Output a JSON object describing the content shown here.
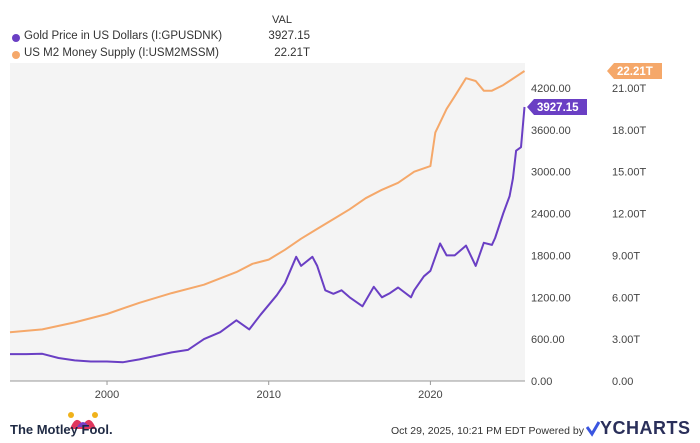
{
  "legend": {
    "header": "VAL",
    "items": [
      {
        "name": "Gold Price in US Dollars (I:GPUSDNK)",
        "value": "3927.15",
        "color": "#6a3fc4"
      },
      {
        "name": "US M2 Money Supply (I:USM2MSSM)",
        "value": "22.21T",
        "color": "#f5a86a"
      }
    ]
  },
  "footer": {
    "brand": "The Motley Fool.",
    "timestamp": "Oct 29, 2025, 10:21 PM EDT  Powered by",
    "provider": "YCHARTS",
    "provider_icon": "ycharts-check-icon",
    "brand_icon": "jester-cap-icon"
  },
  "chart_data": {
    "type": "line",
    "x_ticks": [
      "2000",
      "2010",
      "2020"
    ],
    "x_range": [
      1994.0,
      2025.85
    ],
    "left_axis": {
      "ticks": [
        "0.00",
        "600.00",
        "1200.00",
        "1800.00",
        "2400.00",
        "3000.00",
        "3600.00",
        "4200.00"
      ],
      "range": [
        0,
        4500
      ]
    },
    "right_axis": {
      "ticks": [
        "0.00",
        "3.00T",
        "6.00T",
        "9.00T",
        "12.00T",
        "15.00T",
        "18.00T",
        "21.00T"
      ],
      "range": [
        0,
        22.5
      ]
    },
    "end_labels": {
      "gold": "3927.15",
      "m2": "22.21T"
    },
    "grid": false,
    "series": [
      {
        "name": "Gold Price in US Dollars (I:GPUSDNK)",
        "axis": "left",
        "color": "#6a3fc4",
        "points": [
          [
            1994.0,
            385
          ],
          [
            1995.0,
            385
          ],
          [
            1996.0,
            390
          ],
          [
            1997.0,
            330
          ],
          [
            1998.0,
            295
          ],
          [
            1999.0,
            280
          ],
          [
            2000.0,
            280
          ],
          [
            2001.0,
            270
          ],
          [
            2002.0,
            310
          ],
          [
            2003.0,
            360
          ],
          [
            2004.0,
            410
          ],
          [
            2005.0,
            445
          ],
          [
            2006.0,
            600
          ],
          [
            2007.0,
            700
          ],
          [
            2008.0,
            870
          ],
          [
            2008.8,
            740
          ],
          [
            2009.5,
            950
          ],
          [
            2010.5,
            1230
          ],
          [
            2011.0,
            1400
          ],
          [
            2011.7,
            1780
          ],
          [
            2012.0,
            1650
          ],
          [
            2012.7,
            1780
          ],
          [
            2013.0,
            1650
          ],
          [
            2013.5,
            1300
          ],
          [
            2014.0,
            1250
          ],
          [
            2014.5,
            1300
          ],
          [
            2015.0,
            1200
          ],
          [
            2015.8,
            1070
          ],
          [
            2016.5,
            1350
          ],
          [
            2017.0,
            1200
          ],
          [
            2017.5,
            1260
          ],
          [
            2018.0,
            1340
          ],
          [
            2018.8,
            1200
          ],
          [
            2019.0,
            1300
          ],
          [
            2019.6,
            1500
          ],
          [
            2020.0,
            1580
          ],
          [
            2020.6,
            1970
          ],
          [
            2021.0,
            1800
          ],
          [
            2021.5,
            1800
          ],
          [
            2022.2,
            1940
          ],
          [
            2022.8,
            1650
          ],
          [
            2023.3,
            1980
          ],
          [
            2023.8,
            1950
          ],
          [
            2024.0,
            2050
          ],
          [
            2024.5,
            2400
          ],
          [
            2024.9,
            2650
          ],
          [
            2025.1,
            2900
          ],
          [
            2025.3,
            3300
          ],
          [
            2025.6,
            3350
          ],
          [
            2025.82,
            3927.15
          ]
        ]
      },
      {
        "name": "US M2 Money Supply (I:USM2MSSM)",
        "axis": "right",
        "color": "#f5a86a",
        "points": [
          [
            1994.0,
            3.5
          ],
          [
            1996.0,
            3.7
          ],
          [
            1998.0,
            4.2
          ],
          [
            2000.0,
            4.8
          ],
          [
            2002.0,
            5.6
          ],
          [
            2004.0,
            6.3
          ],
          [
            2006.0,
            6.9
          ],
          [
            2008.0,
            7.8
          ],
          [
            2009.0,
            8.4
          ],
          [
            2010.0,
            8.7
          ],
          [
            2011.0,
            9.4
          ],
          [
            2012.0,
            10.2
          ],
          [
            2013.0,
            10.9
          ],
          [
            2014.0,
            11.6
          ],
          [
            2015.0,
            12.3
          ],
          [
            2016.0,
            13.1
          ],
          [
            2017.0,
            13.7
          ],
          [
            2018.0,
            14.2
          ],
          [
            2019.0,
            15.0
          ],
          [
            2020.0,
            15.4
          ],
          [
            2020.3,
            17.8
          ],
          [
            2021.0,
            19.5
          ],
          [
            2021.5,
            20.4
          ],
          [
            2022.2,
            21.7
          ],
          [
            2022.8,
            21.5
          ],
          [
            2023.3,
            20.8
          ],
          [
            2023.8,
            20.8
          ],
          [
            2024.5,
            21.2
          ],
          [
            2025.82,
            22.21
          ]
        ]
      }
    ]
  }
}
